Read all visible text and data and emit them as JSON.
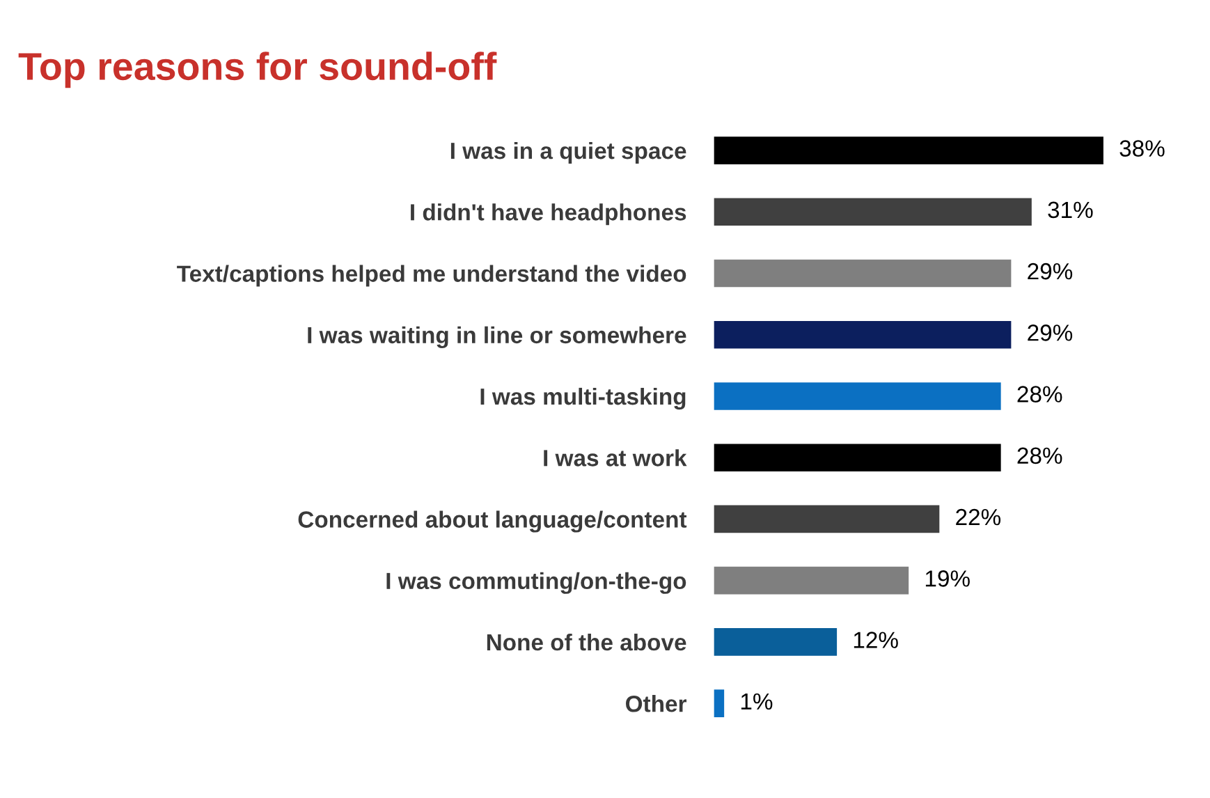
{
  "chart_data": {
    "type": "bar",
    "orientation": "horizontal",
    "title": "Top reasons for sound-off",
    "categories": [
      "I was in a quiet space",
      "I didn't have headphones",
      "Text/captions helped me understand the video",
      "I was waiting in line or somewhere",
      "I was multi-tasking",
      "I was at work",
      "Concerned about language/content",
      "I was commuting/on-the-go",
      "None of the above",
      "Other"
    ],
    "values": [
      38,
      31,
      29,
      29,
      28,
      28,
      22,
      19,
      12,
      1
    ],
    "value_labels": [
      "38%",
      "31%",
      "29%",
      "29%",
      "28%",
      "28%",
      "22%",
      "19%",
      "12%",
      "1%"
    ],
    "colors": [
      "#000000",
      "#404040",
      "#7f7f7f",
      "#0c1f5e",
      "#0b70c2",
      "#000000",
      "#404040",
      "#7f7f7f",
      "#0a5f9a",
      "#0b70c2"
    ],
    "grid": false,
    "legend": false
  }
}
